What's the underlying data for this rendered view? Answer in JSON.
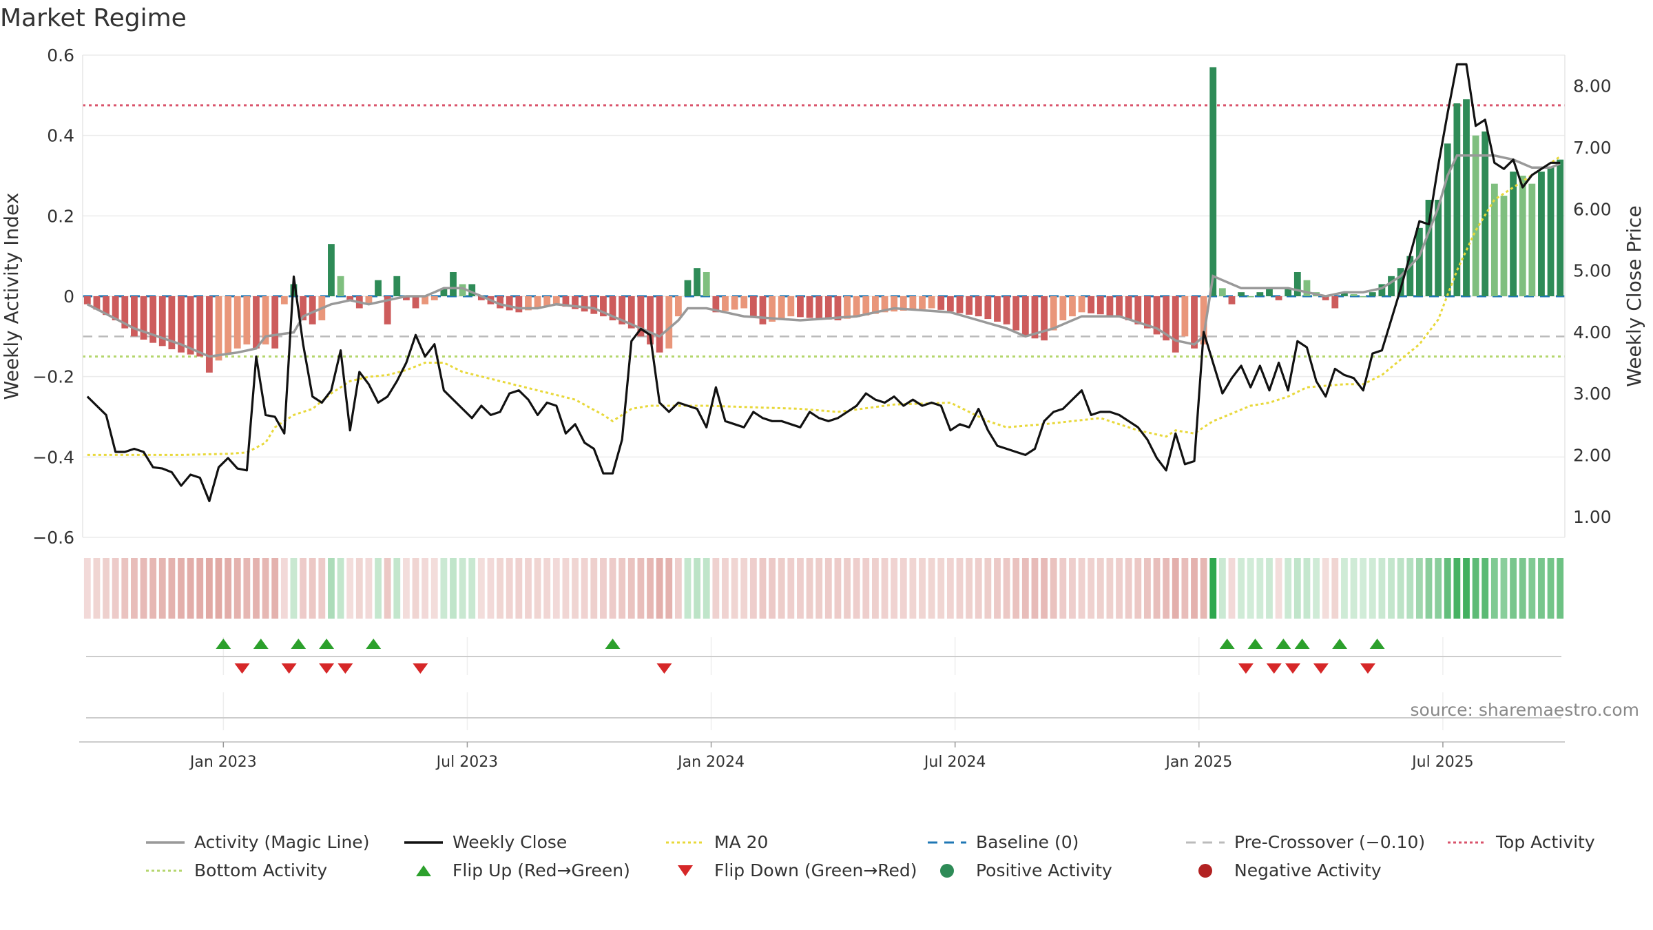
{
  "title": "Market Regime",
  "source": "source: sharemaestro.com",
  "colors": {
    "pos_dark": "#2e8b57",
    "pos_light": "#7fbf7f",
    "neg_dark": "#cd5c5c",
    "neg_light": "#e9967a",
    "magic": "#999999",
    "close": "#111111",
    "ma": "#e8d83a",
    "baseline": "#1f77b4",
    "pre": "#bbbbbb",
    "top": "#d9536b",
    "bottom": "#b5d66e",
    "flip_up": "#2ca02c",
    "flip_down": "#d62728"
  },
  "legend": [
    {
      "label": "Activity (Magic Line)",
      "symbol": "solid",
      "color": "#999999"
    },
    {
      "label": "Weekly Close",
      "symbol": "solid",
      "color": "#111111"
    },
    {
      "label": "MA 20",
      "symbol": "dotted",
      "color": "#e8d83a"
    },
    {
      "label": "Baseline (0)",
      "symbol": "dashed",
      "color": "#1f77b4"
    },
    {
      "label": "Pre-Crossover (−0.10)",
      "symbol": "dashed",
      "color": "#bbbbbb"
    },
    {
      "label": "Top Activity",
      "symbol": "dotted",
      "color": "#d9536b"
    },
    {
      "label": "Bottom Activity",
      "symbol": "dotted",
      "color": "#b5d66e"
    },
    {
      "label": "Flip Up (Red→Green)",
      "symbol": "tri-up",
      "color": "#2ca02c"
    },
    {
      "label": "Flip Down (Green→Red)",
      "symbol": "tri-down",
      "color": "#d62728"
    },
    {
      "label": "Positive Activity",
      "symbol": "circle",
      "color": "#2e8b57"
    },
    {
      "label": "Negative Activity",
      "symbol": "circle",
      "color": "#b22222"
    }
  ],
  "chart_data": {
    "type": "bar",
    "ylabel": "Weekly Activity Index",
    "y2label": "Weekly Close Price",
    "ylim": [
      -0.6,
      0.6
    ],
    "y2lim": [
      1.0,
      8.5
    ],
    "yticks": [
      "0.6",
      "0.4",
      "0.2",
      "0",
      "−0.2",
      "−0.4",
      "−0.6"
    ],
    "y2ticks": [
      "8.00",
      "7.00",
      "6.00",
      "5.00",
      "4.00",
      "3.00",
      "2.00",
      "1.00"
    ],
    "xticks": [
      "Jan 2023",
      "Jul 2023",
      "Jan 2024",
      "Jul 2024",
      "Jan 2025",
      "Jul 2025"
    ],
    "xtick_weeks": [
      14.5,
      40.5,
      66.5,
      92.5,
      118.5,
      144.5
    ],
    "n_weeks": 158,
    "reference_lines": {
      "baseline": 0,
      "pre_crossover": -0.1,
      "top_activity": 0.475,
      "bottom_activity": -0.15
    },
    "bar_keypoints": [
      [
        0,
        -0.02
      ],
      [
        3,
        -0.06
      ],
      [
        5,
        -0.1
      ],
      [
        10,
        -0.14
      ],
      [
        12,
        -0.15
      ],
      [
        14,
        -0.16
      ],
      [
        13,
        -0.19
      ],
      [
        16,
        -0.13
      ],
      [
        17,
        -0.12
      ],
      [
        18,
        -0.13
      ],
      [
        19,
        -0.12
      ],
      [
        20,
        -0.13
      ],
      [
        21,
        -0.02
      ],
      [
        22,
        0.03
      ],
      [
        23,
        -0.06
      ],
      [
        24,
        -0.07
      ],
      [
        25,
        -0.06
      ],
      [
        26,
        0.13
      ],
      [
        27,
        0.05
      ],
      [
        28,
        -0.01
      ],
      [
        29,
        -0.03
      ],
      [
        30,
        -0.02
      ],
      [
        31,
        0.04
      ],
      [
        32,
        -0.07
      ],
      [
        33,
        0.05
      ],
      [
        34,
        -0.01
      ],
      [
        35,
        -0.03
      ],
      [
        36,
        -0.02
      ],
      [
        37,
        -0.01
      ],
      [
        38,
        0.02
      ],
      [
        39,
        0.06
      ],
      [
        40,
        0.03
      ],
      [
        41,
        0.03
      ],
      [
        42,
        -0.01
      ],
      [
        43,
        -0.02
      ],
      [
        44,
        -0.03
      ],
      [
        46,
        -0.04
      ],
      [
        50,
        -0.02
      ],
      [
        55,
        -0.05
      ],
      [
        58,
        -0.08
      ],
      [
        60,
        -0.12
      ],
      [
        61,
        -0.14
      ],
      [
        62,
        -0.13
      ],
      [
        63,
        -0.05
      ],
      [
        64,
        0.04
      ],
      [
        65,
        0.07
      ],
      [
        66,
        0.06
      ],
      [
        67,
        -0.04
      ],
      [
        70,
        -0.03
      ],
      [
        72,
        -0.07
      ],
      [
        75,
        -0.05
      ],
      [
        80,
        -0.06
      ],
      [
        85,
        -0.04
      ],
      [
        90,
        -0.03
      ],
      [
        95,
        -0.05
      ],
      [
        98,
        -0.07
      ],
      [
        100,
        -0.1
      ],
      [
        102,
        -0.11
      ],
      [
        104,
        -0.06
      ],
      [
        106,
        -0.04
      ],
      [
        110,
        -0.05
      ],
      [
        113,
        -0.08
      ],
      [
        115,
        -0.11
      ],
      [
        116,
        -0.14
      ],
      [
        117,
        -0.1
      ],
      [
        118,
        -0.13
      ],
      [
        119,
        -0.12
      ],
      [
        120,
        0.57
      ],
      [
        121,
        0.02
      ],
      [
        122,
        -0.02
      ],
      [
        123,
        0.01
      ],
      [
        124,
        0.0
      ],
      [
        126,
        0.02
      ],
      [
        127,
        -0.01
      ],
      [
        128,
        0.02
      ],
      [
        129,
        0.06
      ],
      [
        130,
        0.04
      ],
      [
        131,
        0.01
      ],
      [
        132,
        -0.01
      ],
      [
        133,
        -0.03
      ],
      [
        134,
        0.01
      ],
      [
        136,
        0.0
      ],
      [
        137,
        0.01
      ],
      [
        138,
        0.03
      ],
      [
        140,
        0.07
      ],
      [
        141,
        0.1
      ],
      [
        142,
        0.17
      ],
      [
        143,
        0.24
      ],
      [
        144,
        0.24
      ],
      [
        145,
        0.38
      ],
      [
        146,
        0.48
      ],
      [
        147,
        0.49
      ],
      [
        148,
        0.4
      ],
      [
        149,
        0.41
      ],
      [
        150,
        0.28
      ],
      [
        151,
        0.25
      ],
      [
        152,
        0.31
      ],
      [
        153,
        0.3
      ],
      [
        154,
        0.28
      ],
      [
        155,
        0.31
      ],
      [
        156,
        0.32
      ],
      [
        157,
        0.34
      ]
    ],
    "close_keypoints": [
      [
        0,
        2.95
      ],
      [
        2,
        2.65
      ],
      [
        3,
        2.05
      ],
      [
        4,
        2.05
      ],
      [
        5,
        2.1
      ],
      [
        6,
        2.05
      ],
      [
        7,
        1.8
      ],
      [
        8,
        1.78
      ],
      [
        9,
        1.72
      ],
      [
        10,
        1.5
      ],
      [
        11,
        1.68
      ],
      [
        12,
        1.63
      ],
      [
        13,
        1.25
      ],
      [
        14,
        1.8
      ],
      [
        15,
        1.95
      ],
      [
        16,
        1.78
      ],
      [
        17,
        1.75
      ],
      [
        18,
        3.6
      ],
      [
        19,
        2.65
      ],
      [
        20,
        2.62
      ],
      [
        21,
        2.35
      ],
      [
        22,
        4.9
      ],
      [
        23,
        3.8
      ],
      [
        24,
        2.95
      ],
      [
        25,
        2.85
      ],
      [
        26,
        3.05
      ],
      [
        27,
        3.7
      ],
      [
        28,
        2.4
      ],
      [
        29,
        3.35
      ],
      [
        30,
        3.15
      ],
      [
        31,
        2.85
      ],
      [
        32,
        2.95
      ],
      [
        33,
        3.2
      ],
      [
        34,
        3.5
      ],
      [
        35,
        3.95
      ],
      [
        36,
        3.6
      ],
      [
        37,
        3.8
      ],
      [
        38,
        3.05
      ],
      [
        39,
        2.9
      ],
      [
        40,
        2.75
      ],
      [
        41,
        2.6
      ],
      [
        42,
        2.8
      ],
      [
        43,
        2.65
      ],
      [
        44,
        2.7
      ],
      [
        45,
        3.0
      ],
      [
        46,
        3.05
      ],
      [
        47,
        2.9
      ],
      [
        48,
        2.65
      ],
      [
        49,
        2.85
      ],
      [
        50,
        2.8
      ],
      [
        51,
        2.35
      ],
      [
        52,
        2.5
      ],
      [
        53,
        2.2
      ],
      [
        54,
        2.1
      ],
      [
        55,
        1.7
      ],
      [
        56,
        1.7
      ],
      [
        57,
        2.25
      ],
      [
        58,
        3.85
      ],
      [
        59,
        4.05
      ],
      [
        60,
        3.95
      ],
      [
        61,
        2.85
      ],
      [
        62,
        2.7
      ],
      [
        63,
        2.85
      ],
      [
        64,
        2.8
      ],
      [
        65,
        2.75
      ],
      [
        66,
        2.45
      ],
      [
        67,
        3.1
      ],
      [
        68,
        2.55
      ],
      [
        69,
        2.5
      ],
      [
        70,
        2.45
      ],
      [
        71,
        2.7
      ],
      [
        72,
        2.6
      ],
      [
        73,
        2.55
      ],
      [
        74,
        2.55
      ],
      [
        75,
        2.5
      ],
      [
        76,
        2.45
      ],
      [
        77,
        2.7
      ],
      [
        78,
        2.6
      ],
      [
        79,
        2.55
      ],
      [
        80,
        2.6
      ],
      [
        81,
        2.7
      ],
      [
        82,
        2.8
      ],
      [
        83,
        3.0
      ],
      [
        84,
        2.9
      ],
      [
        85,
        2.85
      ],
      [
        86,
        2.95
      ],
      [
        87,
        2.8
      ],
      [
        88,
        2.9
      ],
      [
        89,
        2.8
      ],
      [
        90,
        2.85
      ],
      [
        91,
        2.8
      ],
      [
        92,
        2.4
      ],
      [
        93,
        2.5
      ],
      [
        94,
        2.45
      ],
      [
        95,
        2.75
      ],
      [
        96,
        2.4
      ],
      [
        97,
        2.15
      ],
      [
        98,
        2.1
      ],
      [
        99,
        2.05
      ],
      [
        100,
        2.0
      ],
      [
        101,
        2.1
      ],
      [
        102,
        2.55
      ],
      [
        103,
        2.7
      ],
      [
        104,
        2.75
      ],
      [
        105,
        2.9
      ],
      [
        106,
        3.05
      ],
      [
        107,
        2.65
      ],
      [
        108,
        2.7
      ],
      [
        109,
        2.7
      ],
      [
        110,
        2.65
      ],
      [
        111,
        2.55
      ],
      [
        112,
        2.45
      ],
      [
        113,
        2.25
      ],
      [
        114,
        1.95
      ],
      [
        115,
        1.75
      ],
      [
        116,
        2.35
      ],
      [
        117,
        1.85
      ],
      [
        118,
        1.9
      ],
      [
        119,
        4.0
      ],
      [
        120,
        3.5
      ],
      [
        121,
        3.0
      ],
      [
        122,
        3.25
      ],
      [
        123,
        3.45
      ],
      [
        124,
        3.1
      ],
      [
        125,
        3.45
      ],
      [
        126,
        3.05
      ],
      [
        127,
        3.5
      ],
      [
        128,
        3.05
      ],
      [
        129,
        3.85
      ],
      [
        130,
        3.75
      ],
      [
        131,
        3.2
      ],
      [
        132,
        2.95
      ],
      [
        133,
        3.4
      ],
      [
        134,
        3.3
      ],
      [
        135,
        3.25
      ],
      [
        136,
        3.05
      ],
      [
        137,
        3.65
      ],
      [
        138,
        3.7
      ],
      [
        139,
        4.2
      ],
      [
        140,
        4.7
      ],
      [
        141,
        5.25
      ],
      [
        142,
        5.8
      ],
      [
        143,
        5.75
      ],
      [
        144,
        6.7
      ],
      [
        145,
        7.55
      ],
      [
        146,
        8.35
      ],
      [
        147,
        8.35
      ],
      [
        148,
        7.35
      ],
      [
        149,
        7.45
      ],
      [
        150,
        6.75
      ],
      [
        151,
        6.65
      ],
      [
        152,
        6.8
      ],
      [
        153,
        6.35
      ],
      [
        154,
        6.55
      ],
      [
        155,
        6.65
      ],
      [
        156,
        6.75
      ],
      [
        157,
        6.75
      ]
    ],
    "ma_keypoints": [
      [
        0,
        2.0
      ],
      [
        10,
        2.0
      ],
      [
        15,
        2.02
      ],
      [
        17,
        2.04
      ],
      [
        19,
        2.2
      ],
      [
        20,
        2.45
      ],
      [
        22,
        2.65
      ],
      [
        24,
        2.75
      ],
      [
        26,
        3.0
      ],
      [
        28,
        3.2
      ],
      [
        30,
        3.27
      ],
      [
        32,
        3.3
      ],
      [
        34,
        3.38
      ],
      [
        36,
        3.5
      ],
      [
        38,
        3.5
      ],
      [
        40,
        3.35
      ],
      [
        44,
        3.2
      ],
      [
        48,
        3.05
      ],
      [
        52,
        2.9
      ],
      [
        55,
        2.65
      ],
      [
        56,
        2.55
      ],
      [
        58,
        2.75
      ],
      [
        60,
        2.8
      ],
      [
        66,
        2.8
      ],
      [
        70,
        2.78
      ],
      [
        76,
        2.75
      ],
      [
        80,
        2.7
      ],
      [
        86,
        2.82
      ],
      [
        92,
        2.85
      ],
      [
        94,
        2.7
      ],
      [
        96,
        2.55
      ],
      [
        98,
        2.45
      ],
      [
        102,
        2.5
      ],
      [
        108,
        2.6
      ],
      [
        112,
        2.4
      ],
      [
        115,
        2.3
      ],
      [
        116,
        2.4
      ],
      [
        118,
        2.35
      ],
      [
        120,
        2.55
      ],
      [
        124,
        2.8
      ],
      [
        126,
        2.85
      ],
      [
        128,
        2.95
      ],
      [
        130,
        3.1
      ],
      [
        134,
        3.15
      ],
      [
        136,
        3.15
      ],
      [
        138,
        3.3
      ],
      [
        140,
        3.55
      ],
      [
        142,
        3.8
      ],
      [
        144,
        4.2
      ],
      [
        146,
        5.0
      ],
      [
        148,
        5.65
      ],
      [
        150,
        6.15
      ],
      [
        152,
        6.35
      ],
      [
        154,
        6.55
      ],
      [
        156,
        6.75
      ],
      [
        157,
        6.85
      ]
    ],
    "magic_keypoints": [
      [
        0,
        -0.02
      ],
      [
        5,
        -0.08
      ],
      [
        10,
        -0.12
      ],
      [
        13,
        -0.15
      ],
      [
        16,
        -0.14
      ],
      [
        18,
        -0.13
      ],
      [
        19,
        -0.1
      ],
      [
        22,
        -0.09
      ],
      [
        23,
        -0.05
      ],
      [
        26,
        -0.02
      ],
      [
        28,
        -0.01
      ],
      [
        30,
        -0.02
      ],
      [
        32,
        -0.01
      ],
      [
        34,
        0.0
      ],
      [
        36,
        0.0
      ],
      [
        38,
        0.02
      ],
      [
        40,
        0.02
      ],
      [
        42,
        0.0
      ],
      [
        44,
        -0.02
      ],
      [
        46,
        -0.03
      ],
      [
        48,
        -0.03
      ],
      [
        50,
        -0.02
      ],
      [
        54,
        -0.03
      ],
      [
        56,
        -0.05
      ],
      [
        59,
        -0.08
      ],
      [
        61,
        -0.1
      ],
      [
        63,
        -0.06
      ],
      [
        64,
        -0.03
      ],
      [
        66,
        -0.03
      ],
      [
        70,
        -0.05
      ],
      [
        76,
        -0.06
      ],
      [
        82,
        -0.05
      ],
      [
        86,
        -0.03
      ],
      [
        92,
        -0.04
      ],
      [
        95,
        -0.06
      ],
      [
        98,
        -0.08
      ],
      [
        100,
        -0.1
      ],
      [
        103,
        -0.08
      ],
      [
        106,
        -0.05
      ],
      [
        110,
        -0.05
      ],
      [
        114,
        -0.08
      ],
      [
        116,
        -0.11
      ],
      [
        118,
        -0.12
      ],
      [
        119,
        -0.1
      ],
      [
        120,
        0.05
      ],
      [
        121,
        0.04
      ],
      [
        123,
        0.02
      ],
      [
        126,
        0.02
      ],
      [
        128,
        0.02
      ],
      [
        130,
        0.01
      ],
      [
        132,
        0.0
      ],
      [
        134,
        0.01
      ],
      [
        136,
        0.01
      ],
      [
        138,
        0.02
      ],
      [
        140,
        0.05
      ],
      [
        142,
        0.1
      ],
      [
        144,
        0.22
      ],
      [
        145,
        0.3
      ],
      [
        146,
        0.35
      ],
      [
        148,
        0.35
      ],
      [
        150,
        0.35
      ],
      [
        152,
        0.34
      ],
      [
        154,
        0.32
      ],
      [
        156,
        0.32
      ],
      [
        157,
        0.33
      ]
    ],
    "flip_up_weeks": [
      14.5,
      18.5,
      22.5,
      25.5,
      30.5,
      56,
      121.5,
      124.5,
      127.5,
      129.5,
      133.5,
      137.5
    ],
    "flip_down_weeks": [
      16.5,
      21.5,
      25.5,
      27.5,
      35.5,
      61.5,
      123.5,
      126.5,
      128.5,
      131.5,
      136.5
    ]
  }
}
